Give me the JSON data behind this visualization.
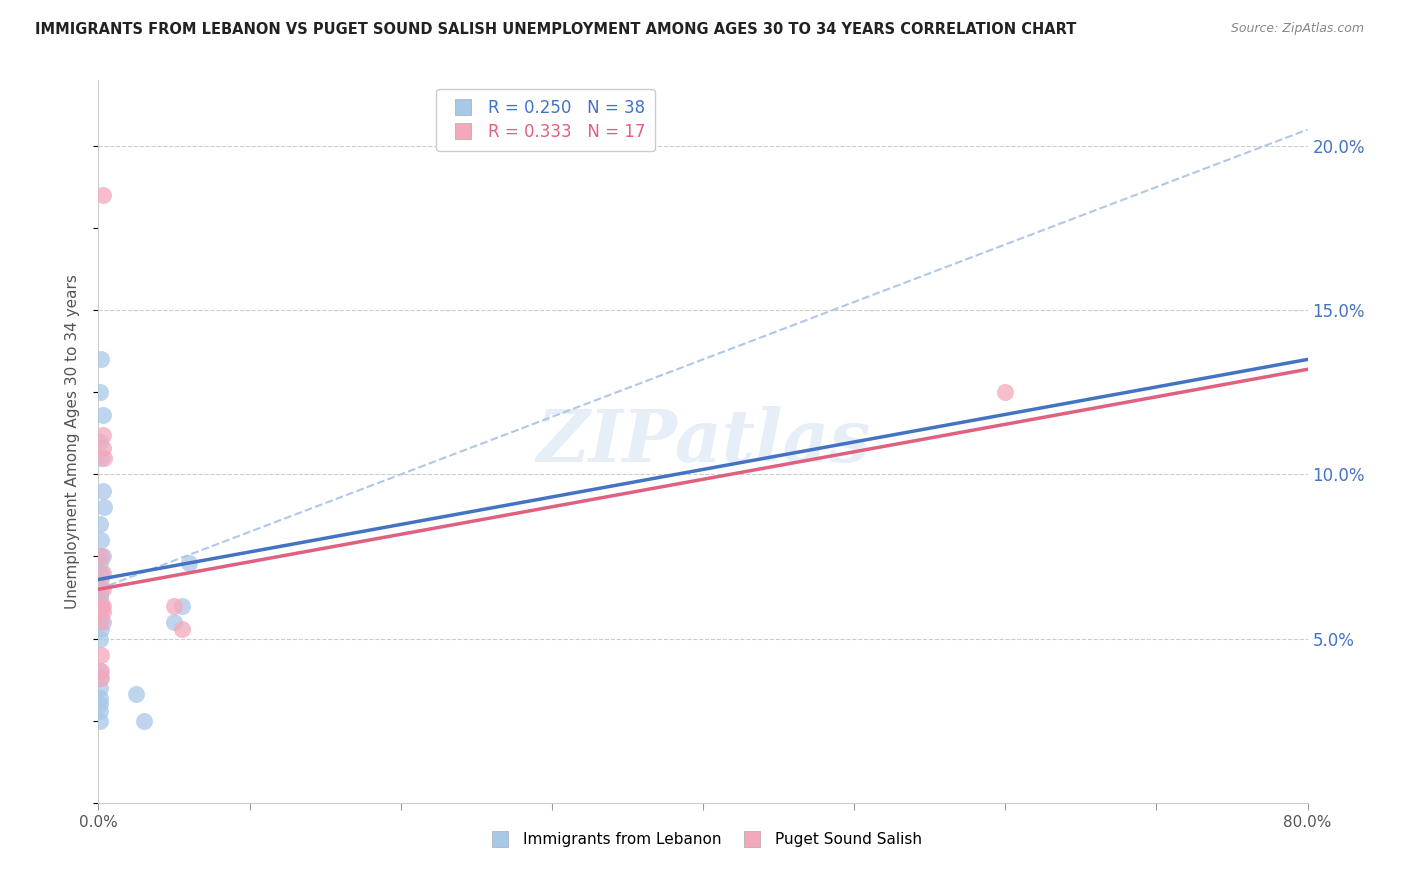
{
  "title": "IMMIGRANTS FROM LEBANON VS PUGET SOUND SALISH UNEMPLOYMENT AMONG AGES 30 TO 34 YEARS CORRELATION CHART",
  "source": "Source: ZipAtlas.com",
  "ylabel": "Unemployment Among Ages 30 to 34 years",
  "legend_blue_r": "R = 0.250",
  "legend_blue_n": "N = 38",
  "legend_pink_r": "R = 0.333",
  "legend_pink_n": "N = 17",
  "blue_color": "#a8c8e8",
  "pink_color": "#f4a8bc",
  "blue_line_color": "#4472c4",
  "pink_line_color": "#e06080",
  "dashed_line_color": "#b0c8e8",
  "xlim": [
    0,
    80.0
  ],
  "ylim": [
    0,
    22.0
  ],
  "xtick_positions": [
    0,
    10,
    20,
    30,
    40,
    50,
    60,
    70,
    80
  ],
  "xtick_labels": [
    "0.0%",
    "",
    "",
    "",
    "",
    "",
    "",
    "",
    "80.0%"
  ],
  "yticks_right": [
    5.0,
    10.0,
    15.0,
    20.0
  ],
  "blue_points_x": [
    0.2,
    0.1,
    0.3,
    0.1,
    0.2,
    0.3,
    0.4,
    0.1,
    0.2,
    0.1,
    0.1,
    0.1,
    0.3,
    0.2,
    0.2,
    0.1,
    0.1,
    0.2,
    0.1,
    0.1,
    0.1,
    0.3,
    0.2,
    0.1,
    0.2,
    0.1,
    5.0,
    6.0,
    0.1,
    0.1,
    0.1,
    0.1,
    0.1,
    0.1,
    0.1,
    5.5,
    2.5,
    3.0
  ],
  "blue_points_y": [
    13.5,
    12.5,
    11.8,
    11.0,
    10.5,
    9.5,
    9.0,
    8.5,
    8.0,
    7.5,
    7.3,
    7.0,
    7.5,
    6.8,
    6.5,
    6.3,
    6.2,
    6.0,
    5.8,
    5.7,
    5.5,
    5.5,
    5.3,
    5.0,
    7.0,
    7.0,
    5.5,
    7.3,
    4.0,
    3.8,
    3.5,
    3.2,
    3.0,
    2.8,
    2.5,
    6.0,
    3.3,
    2.5
  ],
  "pink_points_x": [
    0.3,
    0.3,
    0.3,
    0.4,
    0.2,
    0.3,
    0.3,
    0.3,
    0.2,
    0.3,
    0.2,
    5.0,
    5.5,
    0.2,
    0.2,
    0.2,
    60.0
  ],
  "pink_points_y": [
    18.5,
    11.2,
    10.8,
    10.5,
    7.5,
    7.0,
    6.5,
    6.0,
    6.0,
    5.8,
    5.5,
    6.0,
    5.3,
    4.5,
    4.0,
    3.8,
    12.5
  ],
  "blue_trend_x": [
    0.0,
    80.0
  ],
  "blue_trend_y": [
    6.8,
    13.5
  ],
  "pink_trend_x": [
    0.0,
    80.0
  ],
  "pink_trend_y": [
    6.5,
    13.2
  ],
  "diag_line_x": [
    0.0,
    80.0
  ],
  "diag_line_y": [
    6.5,
    20.5
  ],
  "watermark": "ZIPatlas",
  "legend_labels": [
    "Immigrants from Lebanon",
    "Puget Sound Salish"
  ]
}
